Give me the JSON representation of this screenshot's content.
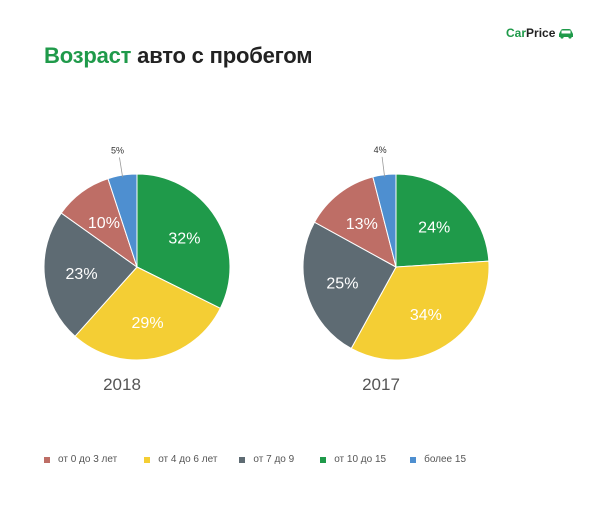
{
  "header": {
    "title_accent": "Возраст",
    "title_rest": " авто с пробегом",
    "logo_car": "Car",
    "logo_price": "Price",
    "logo_icon": "car-icon"
  },
  "chart_data": {
    "type": "pie",
    "categories": [
      "от 0 до 3 лет",
      "от 4 до 6 лет",
      "от 7 до 9",
      "от 10 до 15",
      "более 15"
    ],
    "colors": [
      "#be6e66",
      "#f4ce34",
      "#5e6b73",
      "#1f9a4a",
      "#4e8fd0"
    ],
    "legend_position": "bottom",
    "pies": [
      {
        "title": "2018",
        "values": [
          10,
          29,
          23,
          32,
          5
        ],
        "labels": [
          "10%",
          "29%",
          "23%",
          "32%",
          "5%"
        ]
      },
      {
        "title": "2017",
        "values": [
          13,
          34,
          25,
          24,
          4
        ],
        "labels": [
          "13%",
          "34%",
          "25%",
          "24%",
          "4%"
        ]
      }
    ]
  }
}
